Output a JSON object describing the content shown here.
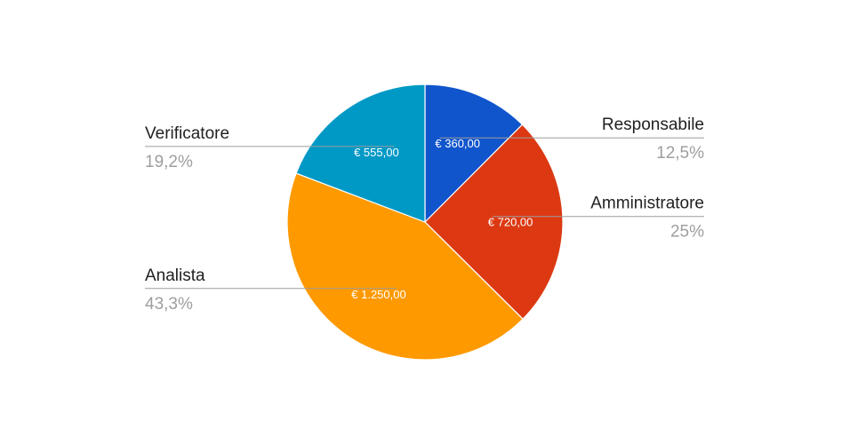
{
  "chart_data": {
    "type": "pie",
    "title": "",
    "start_angle_deg": 0,
    "direction": "clockwise",
    "legend": "none",
    "slices": [
      {
        "label": "Responsabile",
        "value": 360,
        "value_label": "€ 360,00",
        "percent_label": "12,5%",
        "color": "#1155cc"
      },
      {
        "label": "Amministratore",
        "value": 720,
        "value_label": "€ 720,00",
        "percent_label": "25%",
        "color": "#dc3912"
      },
      {
        "label": "Analista",
        "value": 1250,
        "value_label": "€ 1.250,00",
        "percent_label": "43,3%",
        "color": "#ff9900"
      },
      {
        "label": "Verificatore",
        "value": 555,
        "value_label": "€ 555,00",
        "percent_label": "19,2%",
        "color": "#0099c6"
      }
    ]
  }
}
